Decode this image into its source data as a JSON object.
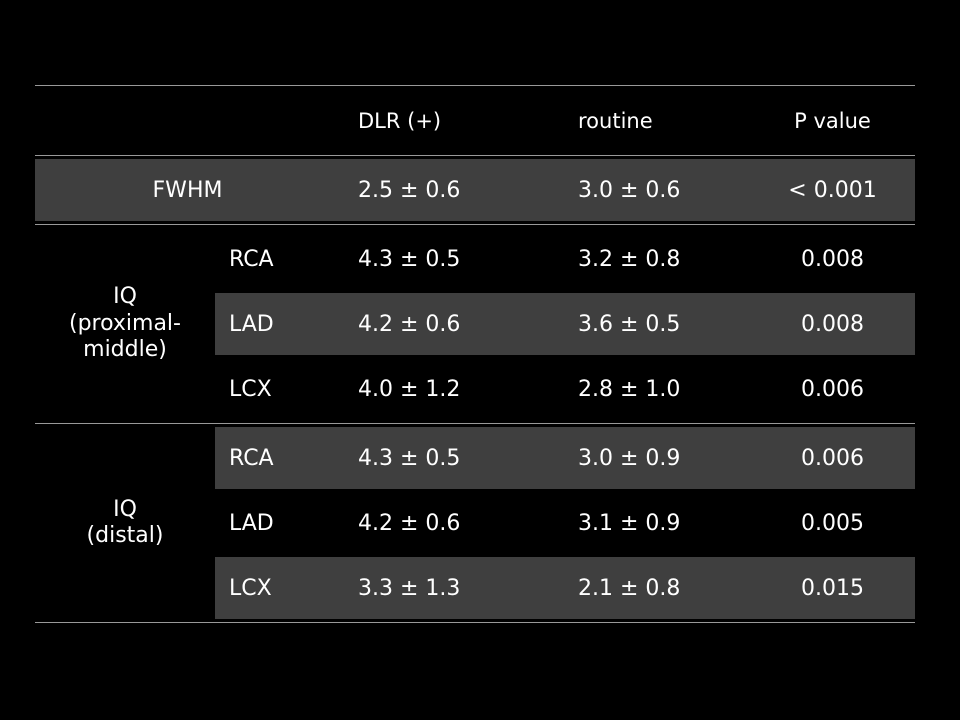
{
  "slide": {
    "background_color": "#000000",
    "shaded_row_color": "#3f3f3f",
    "line_color": "#999999",
    "text_color": "#ffffff"
  },
  "table": {
    "headers": {
      "dlr": "DLR (+)",
      "routine": "routine",
      "p_value": "P value"
    },
    "fwhm_row": {
      "label": "FWHM",
      "dlr": "2.5 ± 0.6",
      "routine": "3.0 ± 0.6",
      "p_value": "< 0.001"
    },
    "groups": [
      {
        "label": "IQ\n(proximal-\nmiddle)",
        "rows": [
          {
            "vessel": "RCA",
            "dlr": "4.3 ± 0.5",
            "routine": "3.2 ± 0.8",
            "p_value": "0.008",
            "shaded": false
          },
          {
            "vessel": "LAD",
            "dlr": "4.2 ± 0.6",
            "routine": "3.6 ± 0.5",
            "p_value": "0.008",
            "shaded": true
          },
          {
            "vessel": "LCX",
            "dlr": "4.0 ± 1.2",
            "routine": "2.8 ± 1.0",
            "p_value": "0.006",
            "shaded": false
          }
        ]
      },
      {
        "label": "IQ\n(distal)",
        "rows": [
          {
            "vessel": "RCA",
            "dlr": "4.3 ± 0.5",
            "routine": "3.0 ± 0.9",
            "p_value": "0.006",
            "shaded": true
          },
          {
            "vessel": "LAD",
            "dlr": "4.2 ± 0.6",
            "routine": "3.1 ± 0.9",
            "p_value": "0.005",
            "shaded": false
          },
          {
            "vessel": "LCX",
            "dlr": "3.3 ± 1.3",
            "routine": "2.1 ± 0.8",
            "p_value": "0.015",
            "shaded": true
          }
        ]
      }
    ]
  }
}
